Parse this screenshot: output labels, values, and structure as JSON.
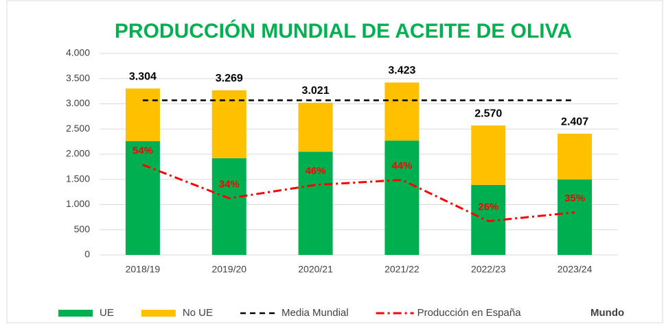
{
  "chart_data": {
    "type": "bar",
    "title": "PRODUCCIÓN MUNDIAL DE ACEITE DE OLIVA",
    "categories": [
      "2018/19",
      "2019/20",
      "2020/21",
      "2021/22",
      "2022/23",
      "2023/24"
    ],
    "series": [
      {
        "name": "UE",
        "color": "#00b050",
        "kind": "bar",
        "values": [
          2260,
          1920,
          2050,
          2270,
          1390,
          1500
        ]
      },
      {
        "name": "No UE",
        "color": "#ffc000",
        "kind": "bar",
        "values": [
          1044,
          1349,
          971,
          1153,
          1180,
          907
        ]
      },
      {
        "name": "Media Mundial",
        "color": "#000000",
        "kind": "line",
        "dash": "8 6",
        "values": [
          3070,
          3070,
          3070,
          3070,
          3070,
          3070
        ]
      },
      {
        "name": "Producción en España",
        "color": "#ff0000",
        "kind": "line",
        "dash": "12 5 3 5",
        "values": [
          1790,
          1125,
          1390,
          1490,
          670,
          845
        ],
        "annotations": [
          "54%",
          "34%",
          "46%",
          "44%",
          "26%",
          "35%"
        ]
      }
    ],
    "totals": {
      "values": [
        3304,
        3269,
        3021,
        3423,
        2570,
        2407
      ],
      "value_labels": [
        "3.304",
        "3.269",
        "3.021",
        "3.423",
        "2.570",
        "2.407"
      ]
    },
    "legend_note": "Mundo",
    "ylim": [
      0,
      4000
    ],
    "yticks": [
      {
        "value": 0,
        "label": "0"
      },
      {
        "value": 500,
        "label": "500"
      },
      {
        "value": 1000,
        "label": "1.000"
      },
      {
        "value": 1500,
        "label": "1.500"
      },
      {
        "value": 2000,
        "label": "2.000"
      },
      {
        "value": 2500,
        "label": "2.500"
      },
      {
        "value": 3000,
        "label": "3.000"
      },
      {
        "value": 3500,
        "label": "3.500"
      },
      {
        "value": 4000,
        "label": "4.000"
      }
    ],
    "grid": true,
    "legend": "bottom"
  }
}
